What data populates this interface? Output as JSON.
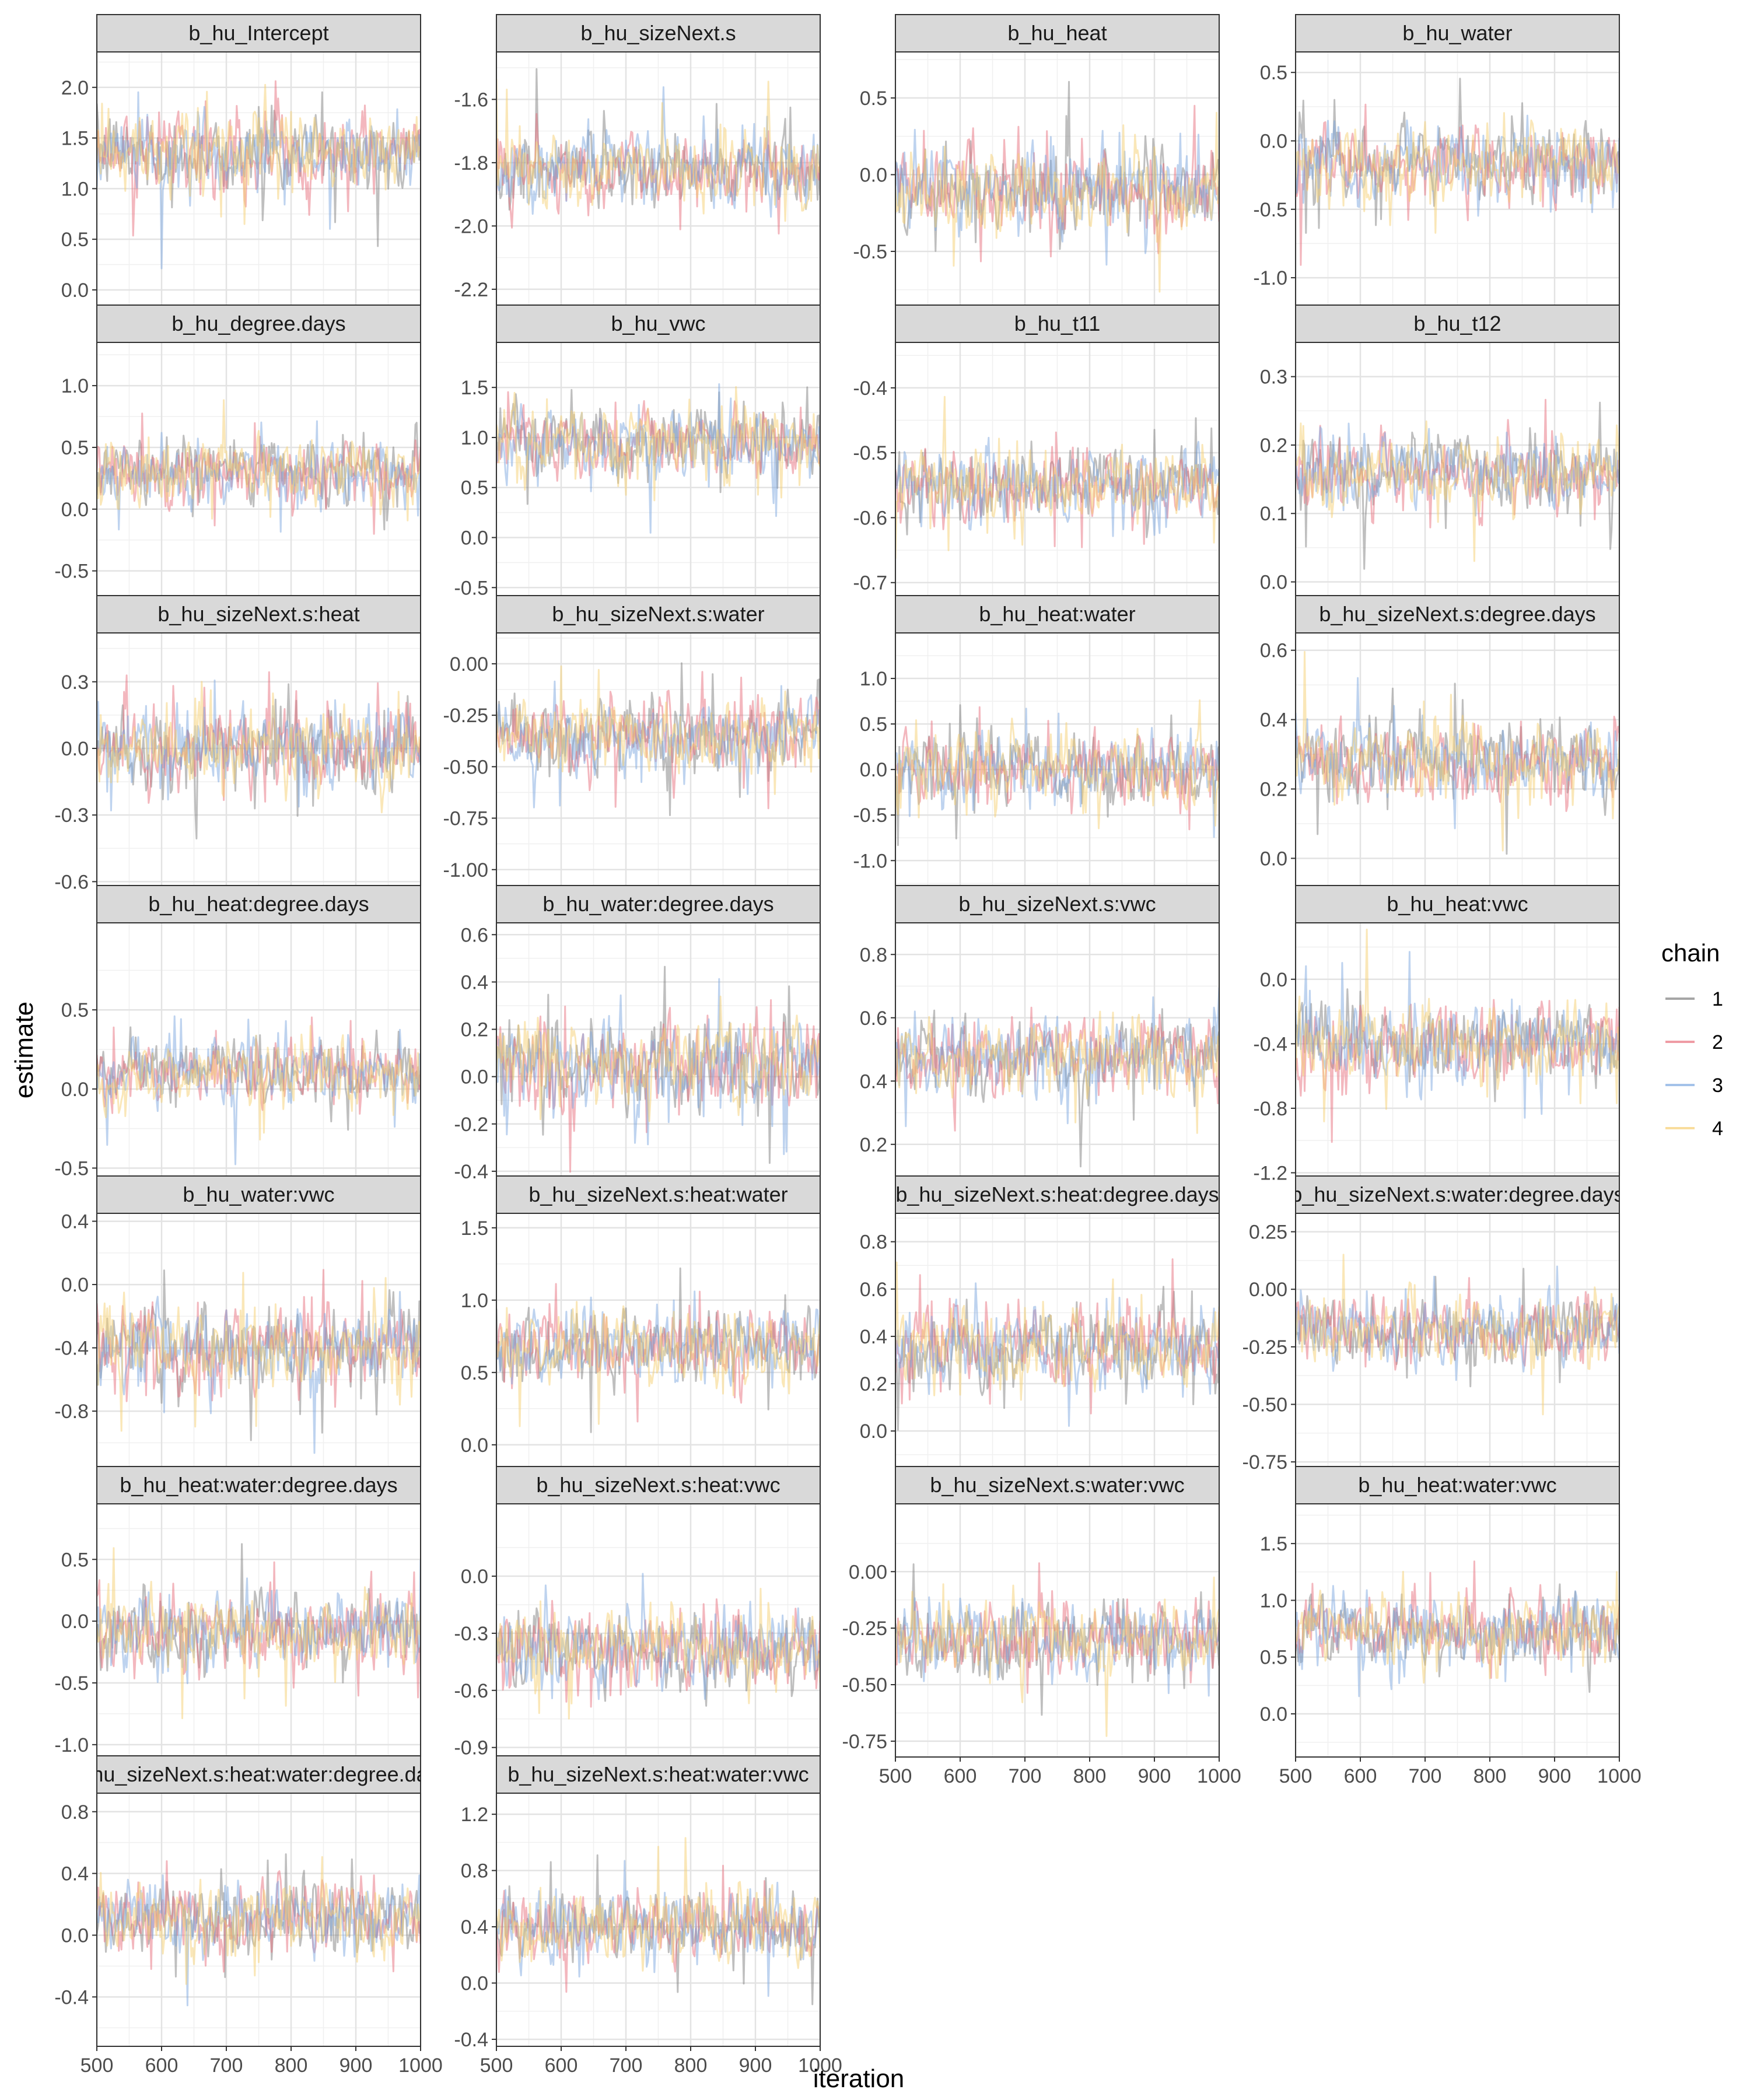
{
  "chart_data": {
    "type": "line",
    "title": "",
    "xlabel": "iteration",
    "ylabel": "estimate",
    "legend": {
      "title": "chain",
      "position": "right",
      "entries": [
        "1",
        "2",
        "3",
        "4"
      ]
    },
    "series_colors": {
      "1": "#7f7f7f",
      "2": "#e8707d",
      "3": "#7ea8e0",
      "4": "#f6cf72"
    },
    "x_range": [
      500,
      1000
    ],
    "x_ticks": [
      "500",
      "600",
      "700",
      "800",
      "900",
      "1000"
    ],
    "grid": true,
    "panels": [
      {
        "title": "b_hu_Intercept",
        "ylim": [
          -0.15,
          2.35
        ],
        "yticks": [
          0.0,
          0.5,
          1.0,
          1.5,
          2.0
        ],
        "ytick_labels": [
          "0.0",
          "0.5",
          "1.0",
          "1.5",
          "2.0"
        ],
        "center": 1.35,
        "spread": 0.42,
        "show_x_ticks": false
      },
      {
        "title": "b_hu_sizeNext.s",
        "ylim": [
          -2.25,
          -1.45
        ],
        "yticks": [
          -2.2,
          -2.0,
          -1.8,
          -1.6
        ],
        "ytick_labels": [
          "-2.2",
          "-2.0",
          "-1.8",
          "-1.6"
        ],
        "center": -1.82,
        "spread": 0.13,
        "show_x_ticks": false
      },
      {
        "title": "b_hu_heat",
        "ylim": [
          -0.85,
          0.8
        ],
        "yticks": [
          -0.5,
          0.0,
          0.5
        ],
        "ytick_labels": [
          "-0.5",
          "0.0",
          "0.5"
        ],
        "center": -0.1,
        "spread": 0.3,
        "show_x_ticks": false
      },
      {
        "title": "b_hu_water",
        "ylim": [
          -1.2,
          0.65
        ],
        "yticks": [
          -1.0,
          -0.5,
          0.0,
          0.5
        ],
        "ytick_labels": [
          "-1.0",
          "-0.5",
          "0.0",
          "0.5"
        ],
        "center": -0.18,
        "spread": 0.3,
        "show_x_ticks": false
      },
      {
        "title": "b_hu_degree.days",
        "ylim": [
          -0.7,
          1.35
        ],
        "yticks": [
          -0.5,
          0.0,
          0.5,
          1.0
        ],
        "ytick_labels": [
          "-0.5",
          "0.0",
          "0.5",
          "1.0"
        ],
        "center": 0.3,
        "spread": 0.28,
        "show_x_ticks": false
      },
      {
        "title": "b_hu_vwc",
        "ylim": [
          -0.58,
          1.95
        ],
        "yticks": [
          -0.5,
          0.0,
          0.5,
          1.0,
          1.5
        ],
        "ytick_labels": [
          "-0.5",
          "0.0",
          "0.5",
          "1.0",
          "1.5"
        ],
        "center": 0.95,
        "spread": 0.38,
        "show_x_ticks": false
      },
      {
        "title": "b_hu_t11",
        "ylim": [
          -0.72,
          -0.33
        ],
        "yticks": [
          -0.7,
          -0.6,
          -0.5,
          -0.4
        ],
        "ytick_labels": [
          "-0.7",
          "-0.6",
          "-0.5",
          "-0.4"
        ],
        "center": -0.55,
        "spread": 0.06,
        "show_x_ticks": false
      },
      {
        "title": "b_hu_t12",
        "ylim": [
          -0.02,
          0.35
        ],
        "yticks": [
          0.0,
          0.1,
          0.2,
          0.3
        ],
        "ytick_labels": [
          "0.0",
          "0.1",
          "0.2",
          "0.3"
        ],
        "center": 0.16,
        "spread": 0.06,
        "show_x_ticks": false
      },
      {
        "title": "b_hu_sizeNext.s:heat",
        "ylim": [
          -0.62,
          0.52
        ],
        "yticks": [
          -0.6,
          -0.3,
          0.0,
          0.3
        ],
        "ytick_labels": [
          "-0.6",
          "-0.3",
          "0.0",
          "0.3"
        ],
        "center": 0.0,
        "spread": 0.2,
        "show_x_ticks": false
      },
      {
        "title": "b_hu_sizeNext.s:water",
        "ylim": [
          -1.08,
          0.15
        ],
        "yticks": [
          -1.0,
          -0.75,
          -0.5,
          -0.25,
          0.0
        ],
        "ytick_labels": [
          "-1.00",
          "-0.75",
          "-0.50",
          "-0.25",
          "0.00"
        ],
        "center": -0.35,
        "spread": 0.2,
        "show_x_ticks": false
      },
      {
        "title": "b_hu_heat:water",
        "ylim": [
          -1.28,
          1.5
        ],
        "yticks": [
          -1.0,
          -0.5,
          0.0,
          0.5,
          1.0
        ],
        "ytick_labels": [
          "-1.0",
          "-0.5",
          "0.0",
          "0.5",
          "1.0"
        ],
        "center": 0.0,
        "spread": 0.45,
        "show_x_ticks": false
      },
      {
        "title": "b_hu_sizeNext.s:degree.days",
        "ylim": [
          -0.08,
          0.65
        ],
        "yticks": [
          0.0,
          0.2,
          0.4,
          0.6
        ],
        "ytick_labels": [
          "0.0",
          "0.2",
          "0.4",
          "0.6"
        ],
        "center": 0.28,
        "spread": 0.12,
        "show_x_ticks": false
      },
      {
        "title": "b_hu_heat:degree.days",
        "ylim": [
          -0.55,
          1.05
        ],
        "yticks": [
          -0.5,
          0.0,
          0.5
        ],
        "ytick_labels": [
          "-0.5",
          "0.0",
          "0.5"
        ],
        "center": 0.1,
        "spread": 0.22,
        "show_x_ticks": false
      },
      {
        "title": "b_hu_water:degree.days",
        "ylim": [
          -0.42,
          0.65
        ],
        "yticks": [
          -0.4,
          -0.2,
          0.0,
          0.2,
          0.4,
          0.6
        ],
        "ytick_labels": [
          "-0.4",
          "-0.2",
          "0.0",
          "0.2",
          "0.4",
          "0.6"
        ],
        "center": 0.05,
        "spread": 0.2,
        "show_x_ticks": false
      },
      {
        "title": "b_hu_sizeNext.s:vwc",
        "ylim": [
          0.1,
          0.9
        ],
        "yticks": [
          0.2,
          0.4,
          0.6,
          0.8
        ],
        "ytick_labels": [
          "0.2",
          "0.4",
          "0.6",
          "0.8"
        ],
        "center": 0.48,
        "spread": 0.13,
        "show_x_ticks": false
      },
      {
        "title": "b_hu_heat:vwc",
        "ylim": [
          -1.22,
          0.35
        ],
        "yticks": [
          -1.2,
          -0.8,
          -0.4,
          0.0
        ],
        "ytick_labels": [
          "-1.2",
          "-0.8",
          "-0.4",
          "0.0"
        ],
        "center": -0.4,
        "spread": 0.28,
        "show_x_ticks": false
      },
      {
        "title": "b_hu_water:vwc",
        "ylim": [
          -1.15,
          0.45
        ],
        "yticks": [
          -0.8,
          -0.4,
          0.0,
          0.4
        ],
        "ytick_labels": [
          "-0.8",
          "-0.4",
          "0.0",
          "0.4"
        ],
        "center": -0.4,
        "spread": 0.28,
        "show_x_ticks": false
      },
      {
        "title": "b_hu_sizeNext.s:heat:water",
        "ylim": [
          -0.15,
          1.6
        ],
        "yticks": [
          0.0,
          0.5,
          1.0,
          1.5
        ],
        "ytick_labels": [
          "0.0",
          "0.5",
          "1.0",
          "1.5"
        ],
        "center": 0.68,
        "spread": 0.28,
        "show_x_ticks": false
      },
      {
        "title": "b_hu_sizeNext.s:heat:degree.days",
        "ylim": [
          -0.15,
          0.92
        ],
        "yticks": [
          0.0,
          0.2,
          0.4,
          0.6,
          0.8
        ],
        "ytick_labels": [
          "0.0",
          "0.2",
          "0.4",
          "0.6",
          "0.8"
        ],
        "center": 0.35,
        "spread": 0.18,
        "show_x_ticks": false
      },
      {
        "title": "b_hu_sizeNext.s:water:degree.days",
        "ylim": [
          -0.77,
          0.33
        ],
        "yticks": [
          -0.75,
          -0.5,
          -0.25,
          0.0,
          0.25
        ],
        "ytick_labels": [
          "-0.75",
          "-0.50",
          "-0.25",
          "0.00",
          "0.25"
        ],
        "center": -0.18,
        "spread": 0.16,
        "show_x_ticks": false
      },
      {
        "title": "b_hu_heat:water:degree.days",
        "ylim": [
          -1.1,
          0.95
        ],
        "yticks": [
          -1.0,
          -0.5,
          0.0,
          0.5
        ],
        "ytick_labels": [
          "-1.0",
          "-0.5",
          "0.0",
          "0.5"
        ],
        "center": -0.08,
        "spread": 0.32,
        "show_x_ticks": false
      },
      {
        "title": "b_hu_sizeNext.s:heat:vwc",
        "ylim": [
          -0.95,
          0.38
        ],
        "yticks": [
          -0.9,
          -0.6,
          -0.3,
          0.0
        ],
        "ytick_labels": [
          "-0.9",
          "-0.6",
          "-0.3",
          "0.0"
        ],
        "center": -0.38,
        "spread": 0.22,
        "show_x_ticks": false
      },
      {
        "title": "b_hu_sizeNext.s:water:vwc",
        "ylim": [
          -0.82,
          0.3
        ],
        "yticks": [
          -0.75,
          -0.5,
          -0.25,
          0.0
        ],
        "ytick_labels": [
          "-0.75",
          "-0.50",
          "-0.25",
          "0.00"
        ],
        "center": -0.3,
        "spread": 0.18,
        "show_x_ticks": true
      },
      {
        "title": "b_hu_heat:water:vwc",
        "ylim": [
          -0.38,
          1.85
        ],
        "yticks": [
          0.0,
          0.5,
          1.0,
          1.5
        ],
        "ytick_labels": [
          "0.0",
          "0.5",
          "1.0",
          "1.5"
        ],
        "center": 0.72,
        "spread": 0.33,
        "show_x_ticks": true
      },
      {
        "title": "b_hu_sizeNext.s:heat:water:degree.days",
        "ylim": [
          -0.72,
          0.92
        ],
        "yticks": [
          -0.4,
          0.0,
          0.4,
          0.8
        ],
        "ytick_labels": [
          "-0.4",
          "0.0",
          "0.4",
          "0.8"
        ],
        "center": 0.1,
        "spread": 0.25,
        "show_x_ticks": true
      },
      {
        "title": "b_hu_sizeNext.s:heat:water:vwc",
        "ylim": [
          -0.45,
          1.35
        ],
        "yticks": [
          -0.4,
          0.0,
          0.4,
          0.8,
          1.2
        ],
        "ytick_labels": [
          "-0.4",
          "0.0",
          "0.4",
          "0.8",
          "1.2"
        ],
        "center": 0.4,
        "spread": 0.27,
        "show_x_ticks": true
      }
    ]
  }
}
